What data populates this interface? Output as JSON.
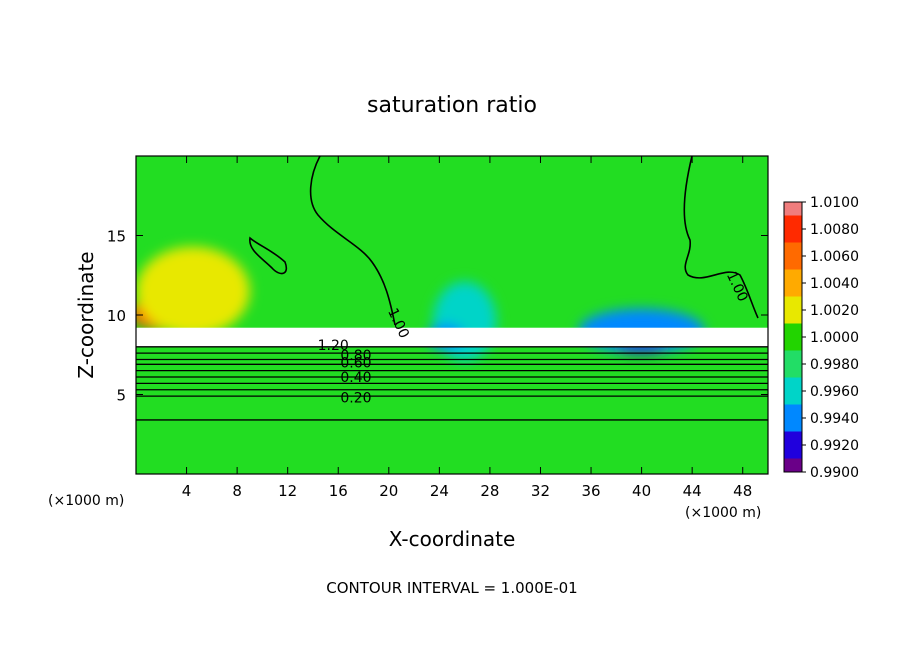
{
  "chart_data": {
    "type": "heatmap",
    "title": "saturation ratio",
    "xlabel": "X-coordinate",
    "ylabel": "Z-coordinate",
    "x_unit_left": "(×1000 m)",
    "x_unit_right": "(×1000 m)",
    "footer": "CONTOUR INTERVAL = 1.000E-01",
    "xlim": [
      0,
      50
    ],
    "ylim": [
      0,
      20
    ],
    "xticks": [
      "4",
      "8",
      "12",
      "16",
      "20",
      "24",
      "28",
      "32",
      "36",
      "40",
      "44",
      "48"
    ],
    "xtick_values": [
      4,
      8,
      12,
      16,
      20,
      24,
      28,
      32,
      36,
      40,
      44,
      48
    ],
    "yticks": [
      "5",
      "10",
      "15"
    ],
    "ytick_values": [
      5,
      10,
      15
    ],
    "colorbar": {
      "labels": [
        "1.0100",
        "1.0080",
        "1.0060",
        "1.0040",
        "1.0020",
        "1.0000",
        "0.9980",
        "0.9960",
        "0.9940",
        "0.9920",
        "0.9900"
      ],
      "colors": [
        "#f07d7d",
        "#ff2a00",
        "#ff6a00",
        "#ffaa00",
        "#e8e800",
        "#22d400",
        "#22dd66",
        "#00d4c8",
        "#0088ff",
        "#2000dd",
        "#6a0088"
      ]
    },
    "contour_labels": [
      {
        "text": "1.00",
        "x": 20.8,
        "z": 9.5
      },
      {
        "text": "1.00",
        "x": 47.6,
        "z": 11.8
      },
      {
        "text": "1.20",
        "x": 15.6,
        "z": 8.1
      },
      {
        "text": "0.80",
        "x": 17.4,
        "z": 7.5
      },
      {
        "text": "0.60",
        "x": 17.4,
        "z": 7.0
      },
      {
        "text": "0.40",
        "x": 17.4,
        "z": 6.1
      },
      {
        "text": "0.20",
        "x": 17.4,
        "z": 4.8
      }
    ],
    "layer_top_z": 8.0,
    "horizontal_contours_z": [
      8.0,
      7.6,
      7.2,
      6.9,
      6.5,
      6.1,
      5.7,
      5.3,
      4.9,
      3.4
    ],
    "hotspots": [
      {
        "color": "#ff5500",
        "x": 2.5,
        "z": 10.1,
        "rx": 3.0,
        "rz": 1.1
      },
      {
        "color": "#e8e800",
        "x": 4.5,
        "z": 11.5,
        "rx": 4.5,
        "rz": 2.8
      },
      {
        "color": "#0088ff",
        "x": 40,
        "z": 9.0,
        "rx": 5,
        "rz": 1.4
      },
      {
        "color": "#00d4c8",
        "x": 26,
        "z": 9.6,
        "rx": 2.5,
        "rz": 2.5
      },
      {
        "color": "#0088ff",
        "x": 24.5,
        "z": 8.6,
        "rx": 1.5,
        "rz": 0.8
      },
      {
        "color": "#2000dd",
        "x": 40,
        "z": 7.9,
        "rx": 2,
        "rz": 0.3
      }
    ]
  }
}
